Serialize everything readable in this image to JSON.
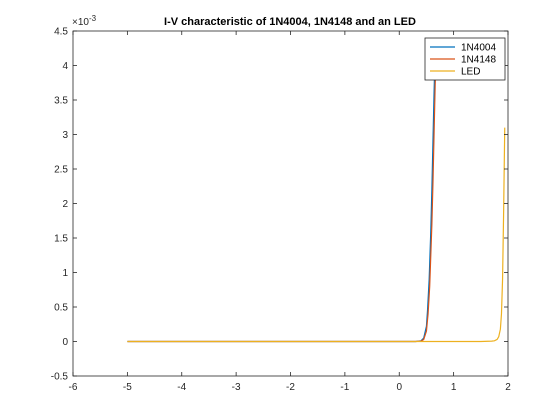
{
  "chart_data": {
    "type": "line",
    "title": "I-V characteristic of 1N4004, 1N4148 and an LED",
    "xlabel": "",
    "ylabel": "",
    "xlim": [
      -6,
      2
    ],
    "ylim": [
      -0.0005,
      0.0045
    ],
    "y_exponent_label": "×10",
    "y_exponent_power": "-3",
    "x_ticks": [
      -6,
      -5,
      -4,
      -3,
      -2,
      -1,
      0,
      1,
      2
    ],
    "x_tick_labels": [
      "-6",
      "-5",
      "-4",
      "-3",
      "-2",
      "-1",
      "0",
      "1",
      "2"
    ],
    "y_ticks": [
      -0.0005,
      0,
      0.0005,
      0.001,
      0.0015,
      0.002,
      0.0025,
      0.003,
      0.0035,
      0.004,
      0.0045
    ],
    "y_tick_labels": [
      "-0.5",
      "0",
      "0.5",
      "1",
      "1.5",
      "2",
      "2.5",
      "3",
      "3.5",
      "4",
      "4.5"
    ],
    "grid": false,
    "legend_position": "top-right",
    "series": [
      {
        "name": "1N4004",
        "color": "#0072BD",
        "x": [
          -5,
          -4,
          -3,
          -2,
          -1,
          0,
          0.3,
          0.4,
          0.45,
          0.5,
          0.52,
          0.55,
          0.58,
          0.6,
          0.62,
          0.64,
          0.66
        ],
        "y": [
          0,
          0,
          0,
          0,
          0,
          0,
          0,
          1e-05,
          5e-05,
          0.00022,
          0.00045,
          0.0009,
          0.0016,
          0.0022,
          0.0029,
          0.0036,
          0.0042
        ]
      },
      {
        "name": "1N4148",
        "color": "#D95319",
        "x": [
          -5,
          -4,
          -3,
          -2,
          -1,
          0,
          0.3,
          0.4,
          0.45,
          0.5,
          0.53,
          0.56,
          0.6,
          0.62,
          0.64,
          0.66,
          0.68
        ],
        "y": [
          0,
          0,
          0,
          0,
          0,
          0,
          0,
          5e-06,
          3e-05,
          0.00015,
          0.0004,
          0.0008,
          0.0017,
          0.0023,
          0.003,
          0.0037,
          0.0042
        ]
      },
      {
        "name": "LED",
        "color": "#EDB120",
        "x": [
          -5,
          -4,
          -3,
          -2,
          -1,
          0,
          1,
          1.5,
          1.7,
          1.75,
          1.8,
          1.83,
          1.86,
          1.88,
          1.9,
          1.92,
          1.94
        ],
        "y": [
          0,
          0,
          0,
          0,
          0,
          0,
          0,
          0,
          5e-06,
          1e-05,
          3e-05,
          7e-05,
          0.00018,
          0.0004,
          0.0009,
          0.0019,
          0.0031
        ]
      }
    ]
  }
}
